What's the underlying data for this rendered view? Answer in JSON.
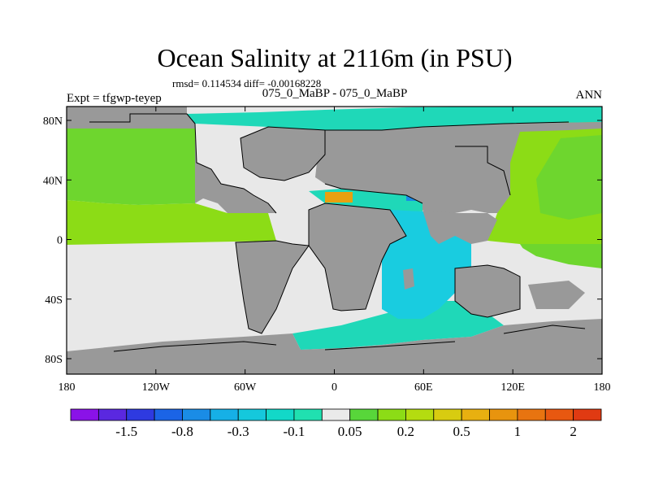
{
  "chart_data": {
    "type": "heatmap",
    "title": "Ocean Salinity at 2116m (in PSU)",
    "stats_label": "rmsd= 0.114534 diff= -0.00168228",
    "subtitle": "075_0_MaBP - 075_0_MaBP",
    "left_label": "Expt = tfgwp-teyep",
    "right_label": "ANN",
    "x_ticks": [
      "180",
      "120W",
      "60W",
      "0",
      "60E",
      "120E",
      "180"
    ],
    "y_ticks": [
      "80N",
      "40N",
      "0",
      "40S",
      "80S"
    ],
    "xlim": [
      -180,
      180
    ],
    "ylim": [
      -90,
      90
    ],
    "colorbar": {
      "colors": [
        "#8a12e8",
        "#5a28e0",
        "#2e3ae0",
        "#1b64e6",
        "#1a8ce6",
        "#16b0e6",
        "#15c8dc",
        "#12d8c8",
        "#20e0b0",
        "#eaeaea",
        "#58d63a",
        "#8cdc16",
        "#b4dc10",
        "#d8cc10",
        "#e8b010",
        "#e8940e",
        "#e87410",
        "#e85810",
        "#e03a12"
      ],
      "labels": [
        "-1.5",
        "-0.8",
        "-0.3",
        "-0.1",
        "0.05",
        "0.2",
        "0.5",
        "1",
        "2"
      ]
    },
    "fill_colors": {
      "land": "#999999",
      "near_zero": "#e8e8e8",
      "cyan_light": "#1fd8b8",
      "cyan": "#19cce0",
      "green_light": "#8cdc16",
      "green": "#6ed62e",
      "blue": "#1a8ce6",
      "orange": "#e8a010",
      "yellow": "#d8cc10"
    }
  }
}
